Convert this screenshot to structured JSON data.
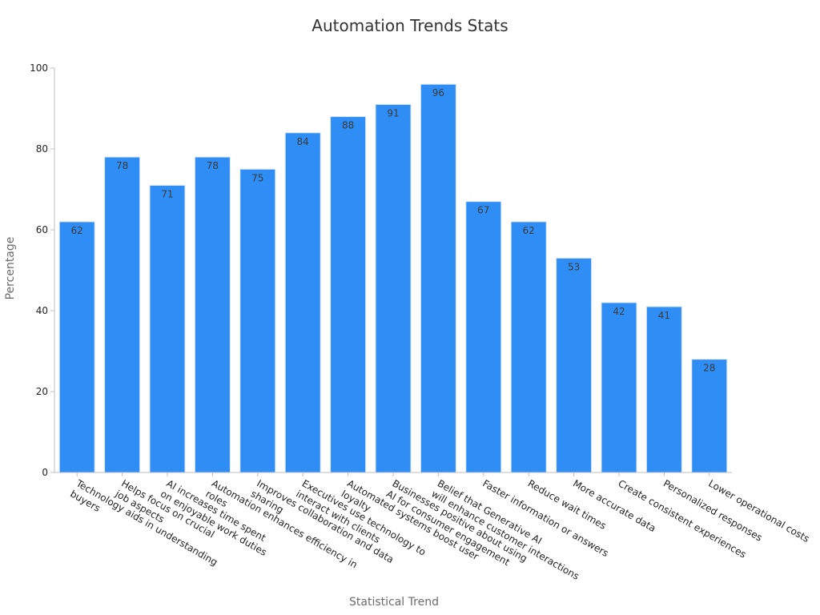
{
  "chart_data": {
    "type": "bar",
    "title": "Automation Trends Stats",
    "xlabel": "Statistical Trend",
    "ylabel": "Percentage",
    "ylim": [
      0,
      100
    ],
    "yticks": [
      0,
      20,
      40,
      60,
      80,
      100
    ],
    "grid": false,
    "legend": "none",
    "bar_color": "#2e8ef5",
    "bar_edge_color": "#d7e6f5",
    "categories": [
      [
        "Technology aids in understanding",
        "buyers"
      ],
      [
        "Helps focus on crucial",
        "job aspects"
      ],
      [
        "AI increases time spent",
        "on enjoyable work duties"
      ],
      [
        "Automation enhances efficiency in",
        "roles"
      ],
      [
        "Improves collaboration and data",
        "sharing"
      ],
      [
        "Executives use technology to",
        "interact with clients"
      ],
      [
        "Automated systems boost user",
        "loyalty"
      ],
      [
        "Businesses positive about using",
        "AI for consumer engagement"
      ],
      [
        "Belief that Generative AI",
        "will enhance customer interactions"
      ],
      [
        "Faster information or answers"
      ],
      [
        "Reduce wait times"
      ],
      [
        "More accurate data"
      ],
      [
        "Create consistent experiences"
      ],
      [
        "Personalized responses"
      ],
      [
        "Lower operational costs"
      ]
    ],
    "values": [
      62,
      78,
      71,
      78,
      75,
      84,
      88,
      91,
      96,
      67,
      62,
      53,
      42,
      41,
      28
    ]
  }
}
